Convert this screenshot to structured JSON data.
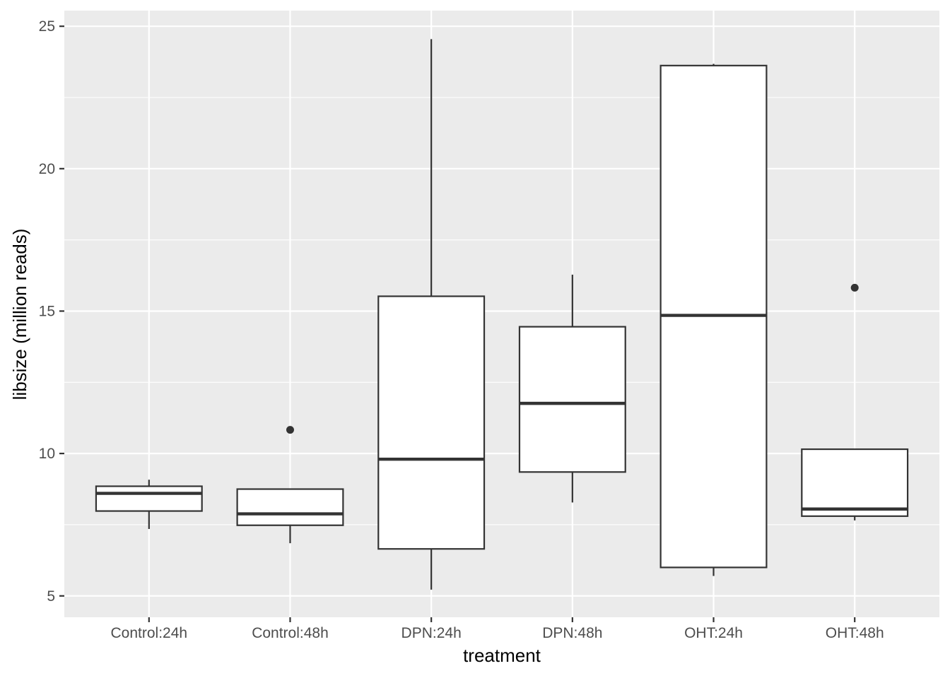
{
  "chart_data": {
    "type": "boxplot",
    "xlabel": "treatment",
    "ylabel": "libsize (million reads)",
    "ylim": [
      4.25,
      25.55
    ],
    "yticks": [
      5,
      10,
      15,
      20,
      25
    ],
    "grid": true,
    "categories": [
      "Control:24h",
      "Control:48h",
      "DPN:24h",
      "DPN:48h",
      "OHT:24h",
      "OHT:48h"
    ],
    "boxes": [
      {
        "category": "Control:24h",
        "whisker_low": 7.35,
        "q1": 7.98,
        "median": 8.6,
        "q3": 8.85,
        "whisker_high": 9.08,
        "outliers": []
      },
      {
        "category": "Control:48h",
        "whisker_low": 6.85,
        "q1": 7.48,
        "median": 7.88,
        "q3": 8.75,
        "whisker_high": 8.75,
        "outliers": [
          10.83
        ]
      },
      {
        "category": "DPN:24h",
        "whisker_low": 5.22,
        "q1": 6.65,
        "median": 9.8,
        "q3": 15.52,
        "whisker_high": 24.55,
        "outliers": []
      },
      {
        "category": "DPN:48h",
        "whisker_low": 8.28,
        "q1": 9.35,
        "median": 11.76,
        "q3": 14.45,
        "whisker_high": 16.28,
        "outliers": []
      },
      {
        "category": "OHT:24h",
        "whisker_low": 5.7,
        "q1": 6.0,
        "median": 14.85,
        "q3": 23.62,
        "whisker_high": 23.68,
        "outliers": []
      },
      {
        "category": "OHT:48h",
        "whisker_low": 7.65,
        "q1": 7.8,
        "median": 8.05,
        "q3": 10.15,
        "whisker_high": 10.15,
        "outliers": [
          15.82
        ]
      }
    ],
    "colors": {
      "panel": "#ebebeb",
      "grid": "#ffffff",
      "box_fill": "#ffffff",
      "box_stroke": "#333333",
      "tick_text": "#4d4d4d",
      "axis_text": "#000000"
    }
  }
}
